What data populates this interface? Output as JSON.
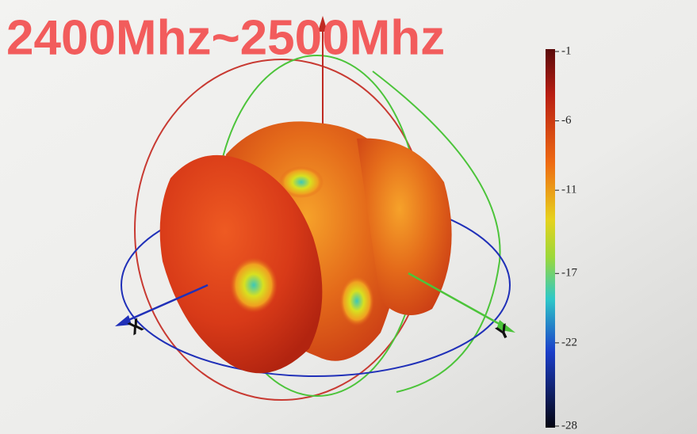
{
  "title": "2400Mhz~2500Mhz",
  "axes": {
    "x_label": "X",
    "y_label": "Y"
  },
  "colorbar": {
    "lim": [
      -28,
      -1
    ],
    "ticks": [
      -1,
      -6,
      -11,
      -17,
      -22,
      -28
    ]
  }
}
